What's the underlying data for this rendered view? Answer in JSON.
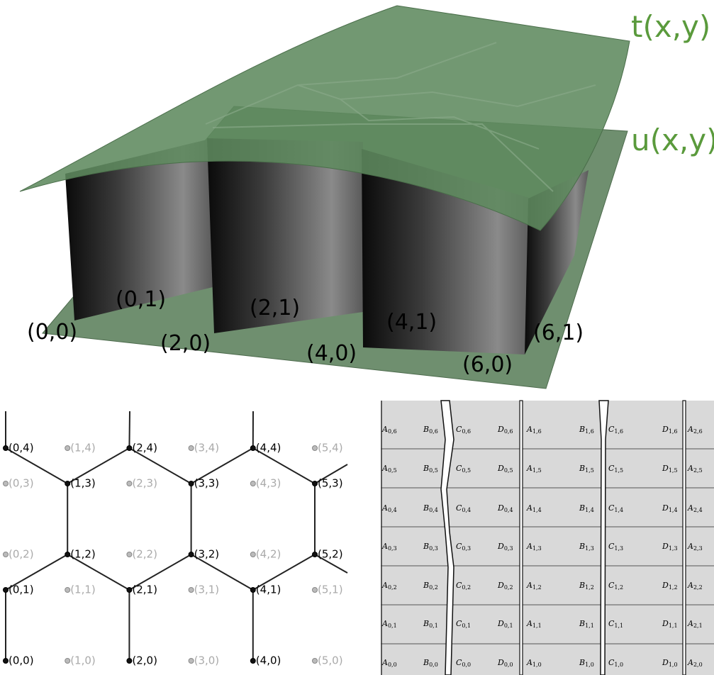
{
  "surface_figure": {
    "top_label": "t(x,y)",
    "bottom_label": "u(x,y)",
    "points": [
      "(0,0)",
      "(0,1)",
      "(2,0)",
      "(2,1)",
      "(4,0)",
      "(4,1)",
      "(6,0)",
      "(6,1)"
    ]
  },
  "hex_grid": {
    "nodes": [
      {
        "label": "(0,0)",
        "active": true
      },
      {
        "label": "(0,1)",
        "active": true
      },
      {
        "label": "(0,2)",
        "active": false
      },
      {
        "label": "(0,3)",
        "active": false
      },
      {
        "label": "(0,4)",
        "active": true
      },
      {
        "label": "(1,0)",
        "active": false
      },
      {
        "label": "(1,1)",
        "active": false
      },
      {
        "label": "(1,2)",
        "active": true
      },
      {
        "label": "(1,3)",
        "active": true
      },
      {
        "label": "(1,4)",
        "active": false
      },
      {
        "label": "(2,0)",
        "active": true
      },
      {
        "label": "(2,1)",
        "active": true
      },
      {
        "label": "(2,2)",
        "active": false
      },
      {
        "label": "(2,3)",
        "active": false
      },
      {
        "label": "(2,4)",
        "active": true
      },
      {
        "label": "(3,0)",
        "active": false
      },
      {
        "label": "(3,1)",
        "active": false
      },
      {
        "label": "(3,2)",
        "active": true
      },
      {
        "label": "(3,3)",
        "active": true
      },
      {
        "label": "(3,4)",
        "active": false
      },
      {
        "label": "(4,0)",
        "active": true
      },
      {
        "label": "(4,1)",
        "active": true
      },
      {
        "label": "(4,2)",
        "active": false
      },
      {
        "label": "(4,3)",
        "active": false
      },
      {
        "label": "(4,4)",
        "active": true
      },
      {
        "label": "(5,0)",
        "active": false
      },
      {
        "label": "(5,1)",
        "active": false
      },
      {
        "label": "(5,2)",
        "active": true
      },
      {
        "label": "(5,3)",
        "active": true
      },
      {
        "label": "(5,4)",
        "active": false
      }
    ]
  },
  "cell_grid": {
    "rows": [
      [
        {
          "letter": "A",
          "sub": "0,6"
        },
        {
          "letter": "B",
          "sub": "0,6"
        },
        {
          "letter": "C",
          "sub": "0,6"
        },
        {
          "letter": "D",
          "sub": "0,6"
        },
        {
          "letter": "A",
          "sub": "1,6"
        },
        {
          "letter": "B",
          "sub": "1,6"
        },
        {
          "letter": "C",
          "sub": "1,6"
        },
        {
          "letter": "D",
          "sub": "1,6"
        },
        {
          "letter": "A",
          "sub": "2,6"
        }
      ],
      [
        {
          "letter": "A",
          "sub": "0,5"
        },
        {
          "letter": "B",
          "sub": "0,5"
        },
        {
          "letter": "C",
          "sub": "0,5"
        },
        {
          "letter": "D",
          "sub": "0,5"
        },
        {
          "letter": "A",
          "sub": "1,5"
        },
        {
          "letter": "B",
          "sub": "1,5"
        },
        {
          "letter": "C",
          "sub": "1,5"
        },
        {
          "letter": "D",
          "sub": "1,5"
        },
        {
          "letter": "A",
          "sub": "2,5"
        }
      ],
      [
        {
          "letter": "A",
          "sub": "0,4"
        },
        {
          "letter": "B",
          "sub": "0,4"
        },
        {
          "letter": "C",
          "sub": "0,4"
        },
        {
          "letter": "D",
          "sub": "0,4"
        },
        {
          "letter": "A",
          "sub": "1,4"
        },
        {
          "letter": "B",
          "sub": "1,4"
        },
        {
          "letter": "C",
          "sub": "1,4"
        },
        {
          "letter": "D",
          "sub": "1,4"
        },
        {
          "letter": "A",
          "sub": "2,4"
        }
      ],
      [
        {
          "letter": "A",
          "sub": "0,3"
        },
        {
          "letter": "B",
          "sub": "0,3"
        },
        {
          "letter": "C",
          "sub": "0,3"
        },
        {
          "letter": "D",
          "sub": "0,3"
        },
        {
          "letter": "A",
          "sub": "1,3"
        },
        {
          "letter": "B",
          "sub": "1,3"
        },
        {
          "letter": "C",
          "sub": "1,3"
        },
        {
          "letter": "D",
          "sub": "1,3"
        },
        {
          "letter": "A",
          "sub": "2,3"
        }
      ],
      [
        {
          "letter": "A",
          "sub": "0,2"
        },
        {
          "letter": "B",
          "sub": "0,2"
        },
        {
          "letter": "C",
          "sub": "0,2"
        },
        {
          "letter": "D",
          "sub": "0,2"
        },
        {
          "letter": "A",
          "sub": "1,2"
        },
        {
          "letter": "B",
          "sub": "1,2"
        },
        {
          "letter": "C",
          "sub": "1,2"
        },
        {
          "letter": "D",
          "sub": "1,2"
        },
        {
          "letter": "A",
          "sub": "2,2"
        }
      ],
      [
        {
          "letter": "A",
          "sub": "0,1"
        },
        {
          "letter": "B",
          "sub": "0,1"
        },
        {
          "letter": "C",
          "sub": "0,1"
        },
        {
          "letter": "D",
          "sub": "0,1"
        },
        {
          "letter": "A",
          "sub": "1,1"
        },
        {
          "letter": "B",
          "sub": "1,1"
        },
        {
          "letter": "C",
          "sub": "1,1"
        },
        {
          "letter": "D",
          "sub": "1,1"
        },
        {
          "letter": "A",
          "sub": "2,1"
        }
      ],
      [
        {
          "letter": "A",
          "sub": "0,0"
        },
        {
          "letter": "B",
          "sub": "0,0"
        },
        {
          "letter": "C",
          "sub": "0,0"
        },
        {
          "letter": "D",
          "sub": "0,0"
        },
        {
          "letter": "A",
          "sub": "1,0"
        },
        {
          "letter": "B",
          "sub": "1,0"
        },
        {
          "letter": "C",
          "sub": "1,0"
        },
        {
          "letter": "D",
          "sub": "1,0"
        },
        {
          "letter": "A",
          "sub": "2,0"
        }
      ]
    ]
  }
}
